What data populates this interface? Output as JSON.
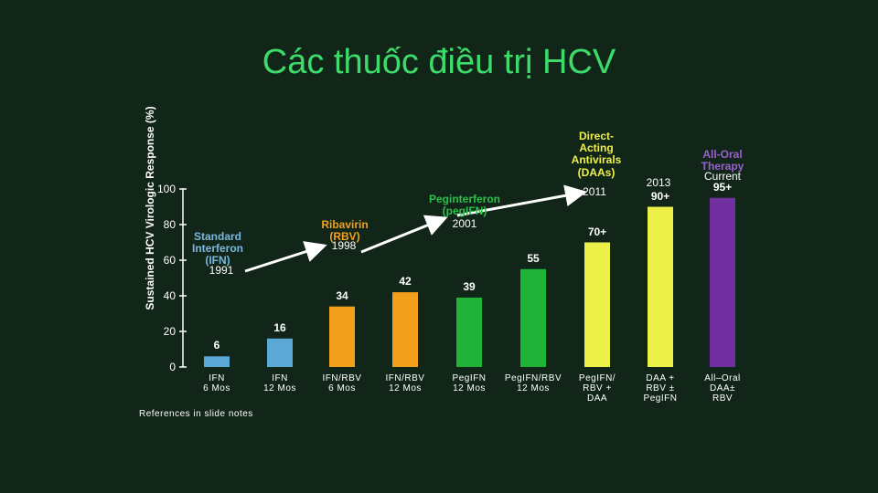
{
  "title": "Các thuốc điều trị HCV",
  "chart_data": {
    "type": "bar",
    "y_label": "Sustained HCV Virologic Response (%)",
    "categories": [
      "IFN\n6 Mos",
      "IFN\n12 Mos",
      "IFN/RBV\n6 Mos",
      "IFN/RBV\n12 Mos",
      "PegIFN\n12 Mos",
      "PegIFN/RBV\n12 Mos",
      "PegIFN/\nRBV +\nDAA",
      "DAA +\nRBV ±\nPegIFN",
      "All–Oral\nDAA±\nRBV"
    ],
    "values": [
      6,
      16,
      34,
      42,
      39,
      55,
      70,
      90,
      95
    ],
    "value_labels": [
      "6",
      "16",
      "34",
      "42",
      "39",
      "55",
      "70+",
      "90+",
      "95+"
    ],
    "colors": [
      "#5ba8d4",
      "#5ba8d4",
      "#f2a01c",
      "#f2a01c",
      "#1fb33a",
      "#1fb33a",
      "#eef04a",
      "#eef04a",
      "#7030a0"
    ],
    "ylim": [
      0,
      100
    ],
    "yticks": [
      0,
      20,
      40,
      60,
      80,
      100
    ],
    "annotations": [
      {
        "label": "Standard\nInterferon\n(IFN)",
        "year": "1991",
        "color": "#7ab8e0"
      },
      {
        "label": "Ribavirin\n(RBV)",
        "year": "1998",
        "color": "#f2a01c"
      },
      {
        "label": "Peginterferon\n(pegIFN)",
        "year": "2001",
        "color": "#2cc048"
      },
      {
        "label": "Direct-\nActing\nAntivirals\n(DAAs)",
        "year": "2011",
        "color": "#eef04a"
      },
      {
        "label": "All-Oral\nTherapy",
        "year": "Current",
        "color": "#9a60d0"
      }
    ],
    "extra_year": "2013"
  },
  "footnote": "References in slide notes"
}
